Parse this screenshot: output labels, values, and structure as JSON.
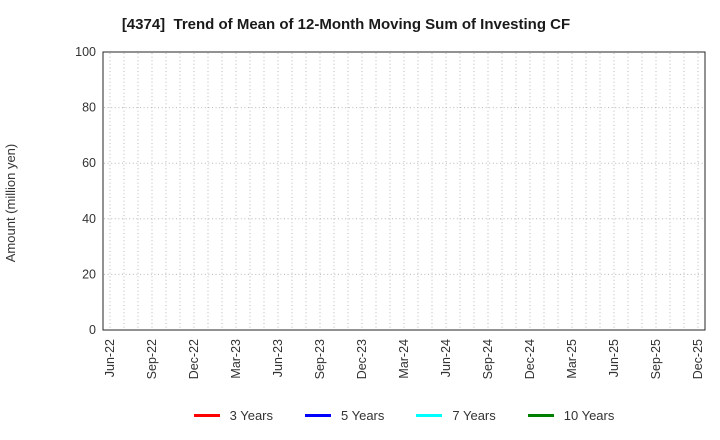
{
  "chart_data": {
    "type": "line",
    "title": "[4374]  Trend of Mean of 12-Month Moving Sum of Investing CF",
    "xlabel": "",
    "ylabel": "Amount (million yen)",
    "ylim": [
      0,
      100
    ],
    "yticks": [
      0,
      20,
      40,
      60,
      80,
      100
    ],
    "x_month_count": 43,
    "xtick_interval_months": 3,
    "xtick_labels": [
      "Jun-22",
      "Sep-22",
      "Dec-22",
      "Mar-23",
      "Jun-23",
      "Sep-23",
      "Dec-23",
      "Mar-24",
      "Jun-24",
      "Sep-24",
      "Dec-24",
      "Mar-25",
      "Jun-25",
      "Sep-25",
      "Dec-25"
    ],
    "grid": "dotted",
    "legend_position": "bottom",
    "series": [
      {
        "name": "3 Years",
        "color": "#ff0000",
        "values": []
      },
      {
        "name": "5 Years",
        "color": "#0000ff",
        "values": []
      },
      {
        "name": "7 Years",
        "color": "#00ffff",
        "values": []
      },
      {
        "name": "10 Years",
        "color": "#008000",
        "values": []
      }
    ]
  },
  "style": {
    "background": "#ffffff",
    "frame_color": "#262626",
    "grid_color": "#b8b8b8",
    "tick_color": "#333333",
    "title_color": "#1a1a1a"
  }
}
